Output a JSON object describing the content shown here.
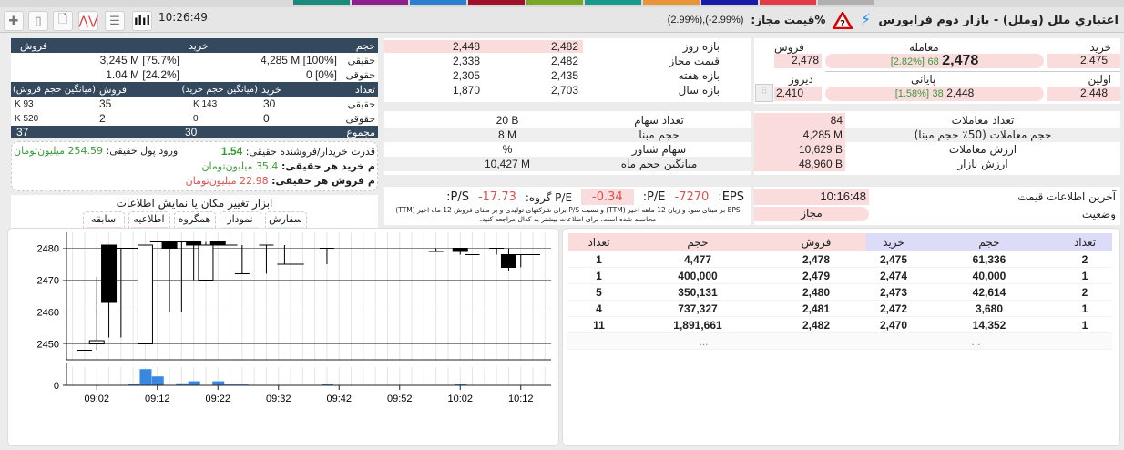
{
  "top_tabs": [
    {
      "color": "#1a8a7a"
    },
    {
      "color": "#8e1f8e"
    },
    {
      "color": "#2a7fd0"
    },
    {
      "color": "#a0102a"
    },
    {
      "color": "#7aa526"
    },
    {
      "color": "#1a9a8a"
    },
    {
      "color": "#e8943a"
    },
    {
      "color": "#1a1aa8"
    },
    {
      "color": "#e23a4a"
    },
    {
      "color": "#b0b0b0"
    }
  ],
  "header": {
    "time": "10:26:49",
    "title": "اعتباري ملل (وملل) - بازار دوم فرابورس",
    "allowed_label": "%قیمت مجاز:",
    "allowed_value": "(2.99%),(-2.99%)",
    "icons": [
      "add-icon",
      "calculator-icon",
      "note-icon",
      "technical-chart-icon",
      "list-icon",
      "candlestick-chart-icon"
    ]
  },
  "client_table": {
    "head1": [
      "حجم",
      "خرید",
      "فروش"
    ],
    "vol_rows": [
      {
        "label": "حقیقی",
        "buy": "4,285 M [100%]",
        "sell": "3,245 M [75.7%]"
      },
      {
        "label": "حقوقی",
        "buy": "0 [0%]",
        "sell": "1.04 M [24.2%]"
      }
    ],
    "head2": [
      "تعداد",
      "خرید",
      "(میانگین حجم خرید)",
      "فروش",
      "(میانگین حجم فروش)"
    ],
    "cnt_rows": [
      {
        "label": "حقیقی",
        "buy": "30",
        "buy_avg": "143 K",
        "sell": "35",
        "sell_avg": "93 K"
      },
      {
        "label": "حقوقی",
        "buy": "0",
        "buy_avg": "0",
        "sell": "2",
        "sell_avg": "520 K"
      }
    ],
    "total": {
      "label": "مجموع",
      "buy": "30",
      "sell": "37"
    }
  },
  "power": {
    "ratio_label": "قدرت خریدار/فروشنده حقیقی:",
    "ratio": "1.54",
    "inflow_label": "ورود پول حقیقی:",
    "inflow": "254.59 میلیون‌تومان",
    "avg_buy_label": "م خرید هر حقیقی:",
    "avg_buy": "35.4 میلیون‌تومان",
    "avg_sell_label": "م فروش هر حقیقی:",
    "avg_sell": "22.98 میلیون‌تومان"
  },
  "tools": {
    "title": "ابزار تغییر مکان یا نمایش اطلاعات",
    "items": [
      {
        "name": "سفارش",
        "state": "نمایش",
        "on": true
      },
      {
        "name": "نمودار",
        "state": "نمایش",
        "on": true
      },
      {
        "name": "همگروه",
        "state": "نمایش",
        "on": true
      },
      {
        "name": "اطلاعیه",
        "state": "مخفی",
        "on": false
      },
      {
        "name": "سابقه",
        "state": "مخفی",
        "on": false
      }
    ]
  },
  "ranges": [
    {
      "label": "بازه روز",
      "low": "2,448",
      "high": "2,482"
    },
    {
      "label": "قیمت مجاز",
      "low": "2,338",
      "high": "2,482"
    },
    {
      "label": "بازه هفته",
      "low": "2,305",
      "high": "2,435"
    },
    {
      "label": "بازه سال",
      "low": "1,870",
      "high": "2,703"
    }
  ],
  "prices": {
    "buy_label": "خرید",
    "trade_label": "معامله",
    "sell_label": "فروش",
    "buy": "2,475",
    "last": "2,478",
    "last_change": "68",
    "last_pct": "[2.82%]",
    "sell": "2,478",
    "first_label": "اولین",
    "close_label": "پایانی",
    "yesterday_label": "دیروز",
    "first": "2,448",
    "close": "2,448",
    "close_change": "38",
    "close_pct": "[1.58%]",
    "yesterday": "2,410"
  },
  "share_info": [
    {
      "label": "تعداد سهام",
      "value": "20 B"
    },
    {
      "label": "حجم مبنا",
      "value": "8 M"
    },
    {
      "label": "سهام شناور",
      "value": "%"
    },
    {
      "label": "میانگین حجم ماه",
      "value": "10,427 M"
    }
  ],
  "trade_info": [
    {
      "label": "تعداد معاملات",
      "value": "84"
    },
    {
      "label": "حجم معاملات (50٪ حجم مبنا)",
      "value": "4,285 M"
    },
    {
      "label": "ارزش معاملات",
      "value": "10,629 B"
    },
    {
      "label": "ارزش بازار",
      "value": "48,960 B"
    }
  ],
  "ratios": {
    "eps_label": "EPS:",
    "eps": "-7270",
    "pe_label": "P/E:",
    "pe": "-0.34",
    "group_pe_label": "P/E گروه:",
    "group_pe": "-17.73",
    "ps_label": "P/S:",
    "ps": "",
    "note": "EPS بر مبنای سود و زیان 12 ماهه اخیر (TTM) و نسبت P/S برای شرکتهای تولیدی و بر مبنای فروش 12 ماه اخیر (TTM) محاسبه شده است. برای اطلاعات بیشتر به کدال مراجعه کنید."
  },
  "status": {
    "last_update_label": "آخرین اطلاعات قیمت",
    "last_update": "10:16:48",
    "state_label": "وضعیت",
    "state": "مجاز"
  },
  "orderbook": {
    "headers": [
      "تعداد",
      "حجم",
      "خرید",
      "فروش",
      "حجم",
      "تعداد"
    ],
    "rows": [
      [
        "2",
        "61,336",
        "2,475",
        "2,478",
        "4,477",
        "1"
      ],
      [
        "1",
        "40,000",
        "2,474",
        "2,479",
        "400,000",
        "1"
      ],
      [
        "2",
        "42,614",
        "2,473",
        "2,480",
        "350,131",
        "5"
      ],
      [
        "1",
        "3,680",
        "2,472",
        "2,481",
        "737,327",
        "4"
      ],
      [
        "1",
        "14,352",
        "2,470",
        "2,482",
        "1,891,661",
        "11"
      ]
    ],
    "more": "..."
  },
  "chart_data": {
    "type": "candlestick",
    "ylim": [
      2445,
      2485
    ],
    "yticks": [
      2450,
      2460,
      2470,
      2480
    ],
    "xticks": [
      "09:02",
      "09:12",
      "09:22",
      "09:32",
      "09:42",
      "09:52",
      "10:02",
      "10:12"
    ],
    "xlim": [
      "08:57",
      "10:17"
    ],
    "grid": true,
    "up_color": "#ffffff",
    "down_color": "#000000",
    "volume_color": "#3a87e0",
    "candles": [
      {
        "t": "09:00",
        "o": 2448,
        "h": 2448,
        "l": 2448,
        "c": 2448
      },
      {
        "t": "09:02",
        "o": 2450,
        "h": 2471,
        "l": 2448,
        "c": 2451
      },
      {
        "t": "09:04",
        "o": 2481,
        "h": 2481,
        "l": 2452,
        "c": 2463
      },
      {
        "t": "09:06",
        "o": 2480,
        "h": 2480,
        "l": 2452,
        "c": 2480
      },
      {
        "t": "09:08",
        "o": 2480,
        "h": 2480,
        "l": 2480,
        "c": 2480
      },
      {
        "t": "09:10",
        "o": 2450,
        "h": 2481,
        "l": 2450,
        "c": 2481
      },
      {
        "t": "09:12",
        "o": 2482,
        "h": 2482,
        "l": 2482,
        "c": 2482
      },
      {
        "t": "09:14",
        "o": 2482,
        "h": 2482,
        "l": 2460,
        "c": 2480
      },
      {
        "t": "09:16",
        "o": 2482,
        "h": 2482,
        "l": 2460,
        "c": 2482
      },
      {
        "t": "09:18",
        "o": 2482,
        "h": 2482,
        "l": 2470,
        "c": 2481
      },
      {
        "t": "09:20",
        "o": 2470,
        "h": 2482,
        "l": 2470,
        "c": 2481
      },
      {
        "t": "09:22",
        "o": 2482,
        "h": 2482,
        "l": 2481,
        "c": 2481
      },
      {
        "t": "09:24",
        "o": 2481,
        "h": 2481,
        "l": 2481,
        "c": 2481
      },
      {
        "t": "09:26",
        "o": 2472,
        "h": 2481,
        "l": 2472,
        "c": 2472
      },
      {
        "t": "09:30",
        "o": 2481,
        "h": 2481,
        "l": 2472,
        "c": 2481
      },
      {
        "t": "09:33",
        "o": 2475,
        "h": 2481,
        "l": 2475,
        "c": 2475
      },
      {
        "t": "09:35",
        "o": 2475,
        "h": 2475,
        "l": 2475,
        "c": 2475
      },
      {
        "t": "09:40",
        "o": 2480,
        "h": 2480,
        "l": 2475,
        "c": 2480
      },
      {
        "t": "09:58",
        "o": 2479,
        "h": 2480,
        "l": 2479,
        "c": 2479
      },
      {
        "t": "10:02",
        "o": 2480,
        "h": 2480,
        "l": 2478,
        "c": 2479
      },
      {
        "t": "10:04",
        "o": 2478,
        "h": 2478,
        "l": 2478,
        "c": 2478
      },
      {
        "t": "10:08",
        "o": 2480,
        "h": 2480,
        "l": 2478,
        "c": 2480
      },
      {
        "t": "10:10",
        "o": 2478,
        "h": 2480,
        "l": 2473,
        "c": 2474
      },
      {
        "t": "10:12",
        "o": 2478,
        "h": 2478,
        "l": 2474,
        "c": 2478
      },
      {
        "t": "10:14",
        "o": 2478,
        "h": 2478,
        "l": 2478,
        "c": 2478
      }
    ],
    "volume": [
      {
        "t": "09:02",
        "v": 1
      },
      {
        "t": "09:08",
        "v": 4
      },
      {
        "t": "09:10",
        "v": 40
      },
      {
        "t": "09:12",
        "v": 22
      },
      {
        "t": "09:16",
        "v": 5
      },
      {
        "t": "09:18",
        "v": 10
      },
      {
        "t": "09:22",
        "v": 10
      },
      {
        "t": "09:24",
        "v": 2
      },
      {
        "t": "09:26",
        "v": 2
      },
      {
        "t": "09:40",
        "v": 4
      },
      {
        "t": "09:58",
        "v": 1
      },
      {
        "t": "10:02",
        "v": 4
      }
    ],
    "volume_yticks": [
      0
    ]
  }
}
